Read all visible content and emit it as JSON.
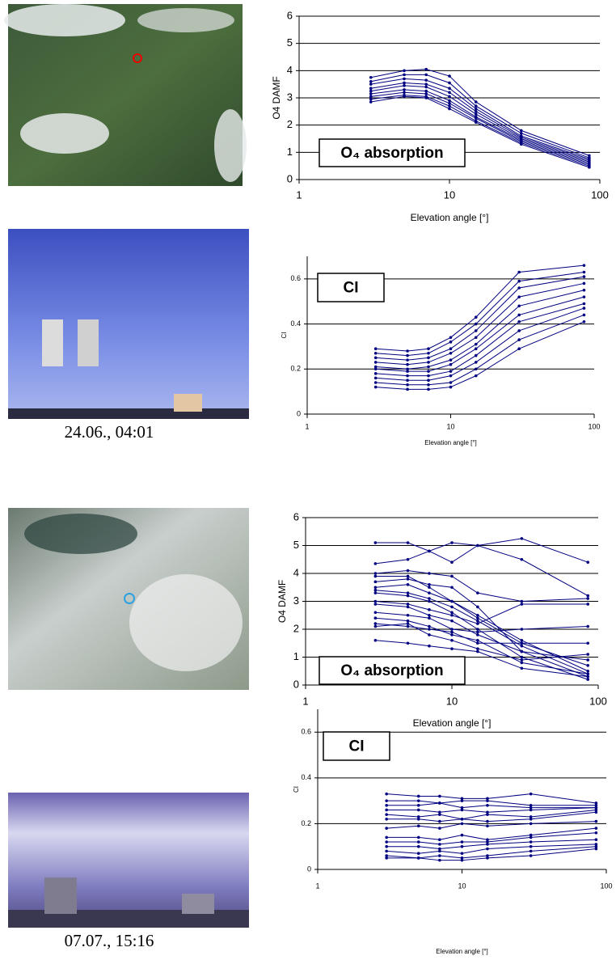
{
  "chart_data": [
    {
      "type": "line",
      "xlabel": "Elevation angle [°]",
      "ylabel": "O4 DAMF",
      "annotation": "O₄ absorption",
      "x": [
        3,
        5,
        7,
        10,
        15,
        30,
        85
      ],
      "xscale": "log",
      "xlim": [
        1,
        100
      ],
      "xticks": [
        1,
        10,
        100
      ],
      "ylim": [
        0,
        6
      ],
      "yticks": [
        0,
        1,
        2,
        3,
        4,
        5,
        6
      ],
      "grid": true,
      "series": [
        {
          "color": "#000080",
          "values": [
            2.85,
            3.05,
            3.0,
            2.6,
            2.1,
            1.3,
            0.45
          ]
        },
        {
          "color": "#000080",
          "values": [
            2.95,
            3.1,
            3.05,
            2.7,
            2.15,
            1.35,
            0.5
          ]
        },
        {
          "color": "#000080",
          "values": [
            3.05,
            3.2,
            3.15,
            2.8,
            2.25,
            1.4,
            0.55
          ]
        },
        {
          "color": "#000080",
          "values": [
            3.15,
            3.3,
            3.25,
            2.9,
            2.3,
            1.45,
            0.6
          ]
        },
        {
          "color": "#000080",
          "values": [
            3.25,
            3.45,
            3.4,
            3.05,
            2.4,
            1.5,
            0.65
          ]
        },
        {
          "color": "#000080",
          "values": [
            3.35,
            3.55,
            3.5,
            3.2,
            2.5,
            1.55,
            0.7
          ]
        },
        {
          "color": "#000080",
          "values": [
            3.5,
            3.7,
            3.65,
            3.35,
            2.6,
            1.6,
            0.75
          ]
        },
        {
          "color": "#000080",
          "values": [
            3.6,
            3.85,
            3.85,
            3.55,
            2.7,
            1.7,
            0.8
          ]
        },
        {
          "color": "#000080",
          "values": [
            3.75,
            4.0,
            4.05,
            3.8,
            2.85,
            1.8,
            0.88
          ]
        }
      ]
    },
    {
      "type": "line",
      "xlabel": "Elevation angle [°]",
      "ylabel": "CI",
      "annotation": "CI",
      "x": [
        3,
        5,
        7,
        10,
        15,
        30,
        85
      ],
      "xscale": "log",
      "xlim": [
        1,
        100
      ],
      "xticks": [
        1,
        10,
        100
      ],
      "ylim": [
        0,
        0.7
      ],
      "yticks": [
        0,
        0.2,
        0.4,
        0.6
      ],
      "grid": true,
      "series": [
        {
          "color": "#000080",
          "values": [
            0.12,
            0.11,
            0.11,
            0.12,
            0.17,
            0.29,
            0.41
          ]
        },
        {
          "color": "#000080",
          "values": [
            0.14,
            0.13,
            0.13,
            0.14,
            0.2,
            0.33,
            0.44
          ]
        },
        {
          "color": "#000080",
          "values": [
            0.16,
            0.15,
            0.15,
            0.17,
            0.23,
            0.37,
            0.47
          ]
        },
        {
          "color": "#000080",
          "values": [
            0.18,
            0.17,
            0.17,
            0.19,
            0.26,
            0.41,
            0.49
          ]
        },
        {
          "color": "#000080",
          "values": [
            0.2,
            0.19,
            0.19,
            0.22,
            0.29,
            0.44,
            0.52
          ]
        },
        {
          "color": "#000080",
          "values": [
            0.21,
            0.2,
            0.21,
            0.24,
            0.31,
            0.48,
            0.55
          ]
        },
        {
          "color": "#000080",
          "values": [
            0.23,
            0.22,
            0.23,
            0.27,
            0.34,
            0.52,
            0.58
          ]
        },
        {
          "color": "#000080",
          "values": [
            0.25,
            0.24,
            0.25,
            0.29,
            0.37,
            0.56,
            0.61
          ]
        },
        {
          "color": "#000080",
          "values": [
            0.27,
            0.26,
            0.27,
            0.32,
            0.4,
            0.59,
            0.63
          ]
        },
        {
          "color": "#000080",
          "values": [
            0.29,
            0.28,
            0.29,
            0.34,
            0.43,
            0.63,
            0.66
          ]
        }
      ]
    },
    {
      "type": "line",
      "xlabel": "Elevation angle [°]",
      "ylabel": "O4 DAMF",
      "annotation": "O₄ absorption",
      "x": [
        3,
        5,
        7,
        10,
        15,
        30,
        85
      ],
      "xscale": "log",
      "xlim": [
        1,
        100
      ],
      "xticks": [
        1,
        10,
        100
      ],
      "ylim": [
        0,
        6
      ],
      "yticks": [
        0,
        1,
        2,
        3,
        4,
        5,
        6
      ],
      "grid": true,
      "series": [
        {
          "color": "#000080",
          "values": [
            5.1,
            5.1,
            4.8,
            5.1,
            5.0,
            5.25,
            4.4
          ]
        },
        {
          "color": "#000080",
          "values": [
            4.35,
            4.5,
            4.8,
            4.4,
            5.0,
            4.5,
            3.2
          ]
        },
        {
          "color": "#000080",
          "values": [
            4.0,
            4.1,
            4.0,
            3.9,
            3.3,
            3.0,
            3.1
          ]
        },
        {
          "color": "#000080",
          "values": [
            3.9,
            3.9,
            3.5,
            3.0,
            2.5,
            1.6,
            0.5
          ]
        },
        {
          "color": "#000080",
          "values": [
            3.7,
            3.8,
            3.6,
            3.5,
            2.8,
            1.2,
            0.3
          ]
        },
        {
          "color": "#000080",
          "values": [
            3.5,
            3.6,
            3.3,
            3.0,
            2.4,
            1.5,
            0.7
          ]
        },
        {
          "color": "#000080",
          "values": [
            3.4,
            3.3,
            3.1,
            2.8,
            2.3,
            1.4,
            0.4
          ]
        },
        {
          "color": "#000080",
          "values": [
            3.3,
            3.2,
            3.0,
            2.6,
            2.0,
            1.0,
            0.2
          ]
        },
        {
          "color": "#000080",
          "values": [
            3.0,
            2.9,
            2.7,
            2.5,
            2.2,
            2.9,
            2.9
          ]
        },
        {
          "color": "#000080",
          "values": [
            2.9,
            2.8,
            2.5,
            2.3,
            1.8,
            1.2,
            0.9
          ]
        },
        {
          "color": "#000080",
          "values": [
            2.6,
            2.5,
            2.4,
            2.0,
            1.9,
            2.0,
            2.1
          ]
        },
        {
          "color": "#000080",
          "values": [
            2.4,
            2.3,
            2.1,
            1.8,
            1.6,
            0.8,
            0.4
          ]
        },
        {
          "color": "#000080",
          "values": [
            2.2,
            2.1,
            2.0,
            1.9,
            1.5,
            1.5,
            1.5
          ]
        },
        {
          "color": "#000080",
          "values": [
            2.1,
            2.2,
            1.8,
            1.6,
            1.3,
            0.9,
            1.1
          ]
        },
        {
          "color": "#000080",
          "values": [
            1.6,
            1.5,
            1.4,
            1.3,
            1.2,
            0.6,
            0.3
          ]
        }
      ]
    },
    {
      "type": "line",
      "xlabel": "Elevation angle [°]",
      "ylabel": "CI",
      "annotation": "CI",
      "x": [
        3,
        5,
        7,
        10,
        15,
        30,
        85
      ],
      "xscale": "log",
      "xlim": [
        1,
        100
      ],
      "xticks": [
        1,
        10,
        100
      ],
      "ylim": [
        0,
        0.7
      ],
      "yticks": [
        0,
        0.2,
        0.4,
        0.6
      ],
      "grid": true,
      "series": [
        {
          "color": "#000080",
          "values": [
            0.33,
            0.32,
            0.32,
            0.31,
            0.31,
            0.33,
            0.29
          ]
        },
        {
          "color": "#000080",
          "values": [
            0.3,
            0.3,
            0.29,
            0.3,
            0.3,
            0.28,
            0.28
          ]
        },
        {
          "color": "#000080",
          "values": [
            0.28,
            0.28,
            0.29,
            0.27,
            0.28,
            0.27,
            0.27
          ]
        },
        {
          "color": "#000080",
          "values": [
            0.26,
            0.26,
            0.25,
            0.26,
            0.25,
            0.26,
            0.27
          ]
        },
        {
          "color": "#000080",
          "values": [
            0.24,
            0.23,
            0.24,
            0.22,
            0.24,
            0.23,
            0.26
          ]
        },
        {
          "color": "#000080",
          "values": [
            0.22,
            0.22,
            0.21,
            0.22,
            0.21,
            0.22,
            0.25
          ]
        },
        {
          "color": "#000080",
          "values": [
            0.18,
            0.19,
            0.18,
            0.2,
            0.19,
            0.2,
            0.21
          ]
        },
        {
          "color": "#000080",
          "values": [
            0.14,
            0.14,
            0.13,
            0.15,
            0.13,
            0.15,
            0.18
          ]
        },
        {
          "color": "#000080",
          "values": [
            0.12,
            0.12,
            0.11,
            0.12,
            0.12,
            0.14,
            0.16
          ]
        },
        {
          "color": "#000080",
          "values": [
            0.1,
            0.1,
            0.09,
            0.1,
            0.11,
            0.12,
            0.13
          ]
        },
        {
          "color": "#000080",
          "values": [
            0.08,
            0.07,
            0.08,
            0.07,
            0.09,
            0.1,
            0.11
          ]
        },
        {
          "color": "#000080",
          "values": [
            0.06,
            0.05,
            0.06,
            0.05,
            0.06,
            0.08,
            0.1
          ]
        },
        {
          "color": "#000080",
          "values": [
            0.05,
            0.05,
            0.04,
            0.04,
            0.05,
            0.06,
            0.09
          ]
        }
      ]
    }
  ],
  "photo_captions": [
    "24.06., 04:01",
    "07.07., 15:16"
  ]
}
